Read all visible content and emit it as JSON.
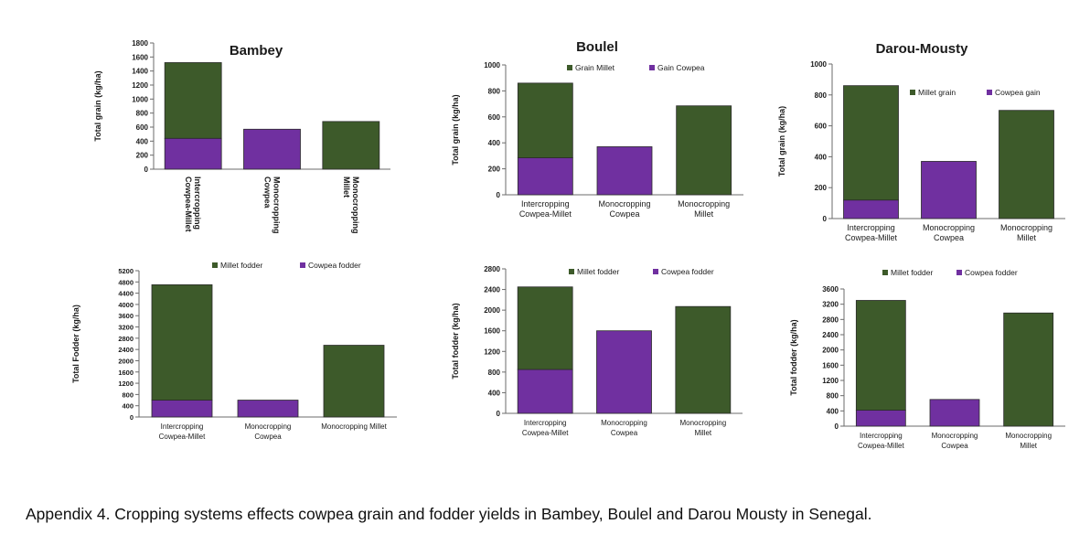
{
  "colors": {
    "millet": "#3d5a2a",
    "cowpea": "#7030a0",
    "axis": "#6b6b6b"
  },
  "caption": "Appendix 4. Cropping systems effects cowpea grain and fodder yields in Bambey, Boulel and Darou Mousty in Senegal.",
  "chart_data": [
    {
      "type": "bar",
      "stacked": true,
      "title": "Bambey",
      "ylabel": "Total grain (kg/ha)",
      "ylim": [
        0,
        1800
      ],
      "yticks": [
        0,
        200,
        400,
        600,
        800,
        1000,
        1200,
        1400,
        1600,
        1800
      ],
      "categories": [
        [
          "Intercropping",
          "Cowpea-Millet"
        ],
        [
          "Monocropping",
          "Cowpea"
        ],
        [
          "Monocropping",
          "Millet"
        ]
      ],
      "category_labels_rotated": true,
      "series": [
        {
          "key": "cowpea",
          "values": [
            440,
            570,
            0
          ]
        },
        {
          "key": "millet",
          "values": [
            1080,
            0,
            680
          ]
        }
      ],
      "legend": []
    },
    {
      "type": "bar",
      "stacked": true,
      "title": "Boulel",
      "ylabel": "Total grain (kg/ha)",
      "ylim": [
        0,
        1000
      ],
      "yticks": [
        0,
        200,
        400,
        600,
        800,
        1000
      ],
      "categories": [
        [
          "Intercropping",
          "Cowpea-Millet"
        ],
        [
          "Monocropping",
          "Cowpea"
        ],
        [
          "Monocropping",
          "Millet"
        ]
      ],
      "series": [
        {
          "key": "cowpea",
          "name": "Gain Cowpea",
          "values": [
            285,
            370,
            0
          ]
        },
        {
          "key": "millet",
          "name": "Grain Millet",
          "values": [
            575,
            0,
            685
          ]
        }
      ],
      "legend": [
        "Grain Millet",
        "Gain Cowpea"
      ],
      "legend_position": "top"
    },
    {
      "type": "bar",
      "stacked": true,
      "title": "Darou-Mousty",
      "ylabel": "Total grain (kg/ha)",
      "ylim": [
        0,
        1000
      ],
      "yticks": [
        0,
        200,
        400,
        600,
        800,
        1000
      ],
      "categories": [
        [
          "Intercropping",
          "Cowpea-Millet"
        ],
        [
          "Monocropping",
          "Cowpea"
        ],
        [
          "Monocropping",
          "Millet"
        ]
      ],
      "series": [
        {
          "key": "cowpea",
          "name": "Cowpea gain",
          "values": [
            120,
            370,
            0
          ]
        },
        {
          "key": "millet",
          "name": "Millet grain",
          "values": [
            740,
            0,
            700
          ]
        }
      ],
      "legend": [
        "Millet grain",
        "Cowpea gain"
      ],
      "legend_position": "top-right"
    },
    {
      "type": "bar",
      "stacked": true,
      "title": "",
      "ylabel": "Total Fodder (kg/ha)",
      "ylim": [
        0,
        5200
      ],
      "yticks": [
        0,
        400,
        800,
        1200,
        1600,
        2000,
        2400,
        2800,
        3200,
        3600,
        4000,
        4400,
        4800,
        5200
      ],
      "categories": [
        [
          "Intercropping",
          "Cowpea-Millet"
        ],
        [
          "Monocropping",
          "Cowpea"
        ],
        [
          "Monocropping Millet"
        ]
      ],
      "series": [
        {
          "key": "cowpea",
          "name": "Cowpea fodder",
          "values": [
            600,
            600,
            0
          ]
        },
        {
          "key": "millet",
          "name": "Millet fodder",
          "values": [
            4100,
            0,
            2550
          ]
        }
      ],
      "legend": [
        "Millet fodder",
        "Cowpea fodder"
      ],
      "legend_position": "top"
    },
    {
      "type": "bar",
      "stacked": true,
      "title": "",
      "ylabel": "Total fodder (kg/ha)",
      "ylim": [
        0,
        2800
      ],
      "yticks": [
        0,
        400,
        800,
        1200,
        1600,
        2000,
        2400,
        2800
      ],
      "categories": [
        [
          "Intercropping",
          "Cowpea-Millet"
        ],
        [
          "Monocropping",
          "Cowpea"
        ],
        [
          "Monocropping",
          "Millet"
        ]
      ],
      "series": [
        {
          "key": "cowpea",
          "name": "Cowpea fodder",
          "values": [
            850,
            1600,
            0
          ]
        },
        {
          "key": "millet",
          "name": "Millet fodder",
          "values": [
            1600,
            0,
            2070
          ]
        }
      ],
      "legend": [
        "Millet fodder",
        "Cowpea fodder"
      ],
      "legend_position": "top"
    },
    {
      "type": "bar",
      "stacked": true,
      "title": "",
      "ylabel": "Total fodder (kg/ha)",
      "ylim": [
        0,
        3600
      ],
      "yticks": [
        0,
        400,
        800,
        1200,
        1600,
        2000,
        2400,
        2800,
        3200,
        3600
      ],
      "categories": [
        [
          "Intercropping",
          "Cowpea-Millet"
        ],
        [
          "Monocropping",
          "Cowpea"
        ],
        [
          "Monocropping",
          "Millet"
        ]
      ],
      "series": [
        {
          "key": "cowpea",
          "name": "Cowpea fodder",
          "values": [
            420,
            700,
            0
          ]
        },
        {
          "key": "millet",
          "name": "Millet fodder",
          "values": [
            2880,
            0,
            2970
          ]
        }
      ],
      "legend": [
        "Millet fodder",
        "Cowpea fodder"
      ],
      "legend_position": "top"
    }
  ]
}
